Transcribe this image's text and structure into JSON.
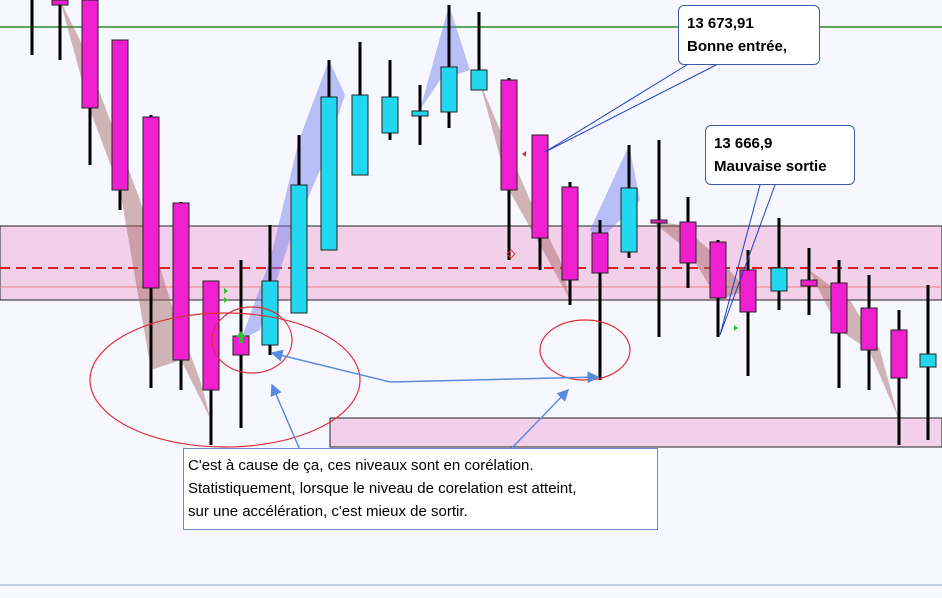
{
  "callouts": [
    {
      "price": "13 673,91",
      "label": "Bonne entrée,"
    },
    {
      "price": "13 666,9",
      "label": "Mauvaise sortie"
    }
  ],
  "note": {
    "lines": [
      "C'est à cause de ça, ces niveaux sont en corélation.",
      "Statistiquement, lorsque le niveau de corelation est atteint,",
      "sur une accélération, c'est mieux de sortir."
    ]
  }
}
